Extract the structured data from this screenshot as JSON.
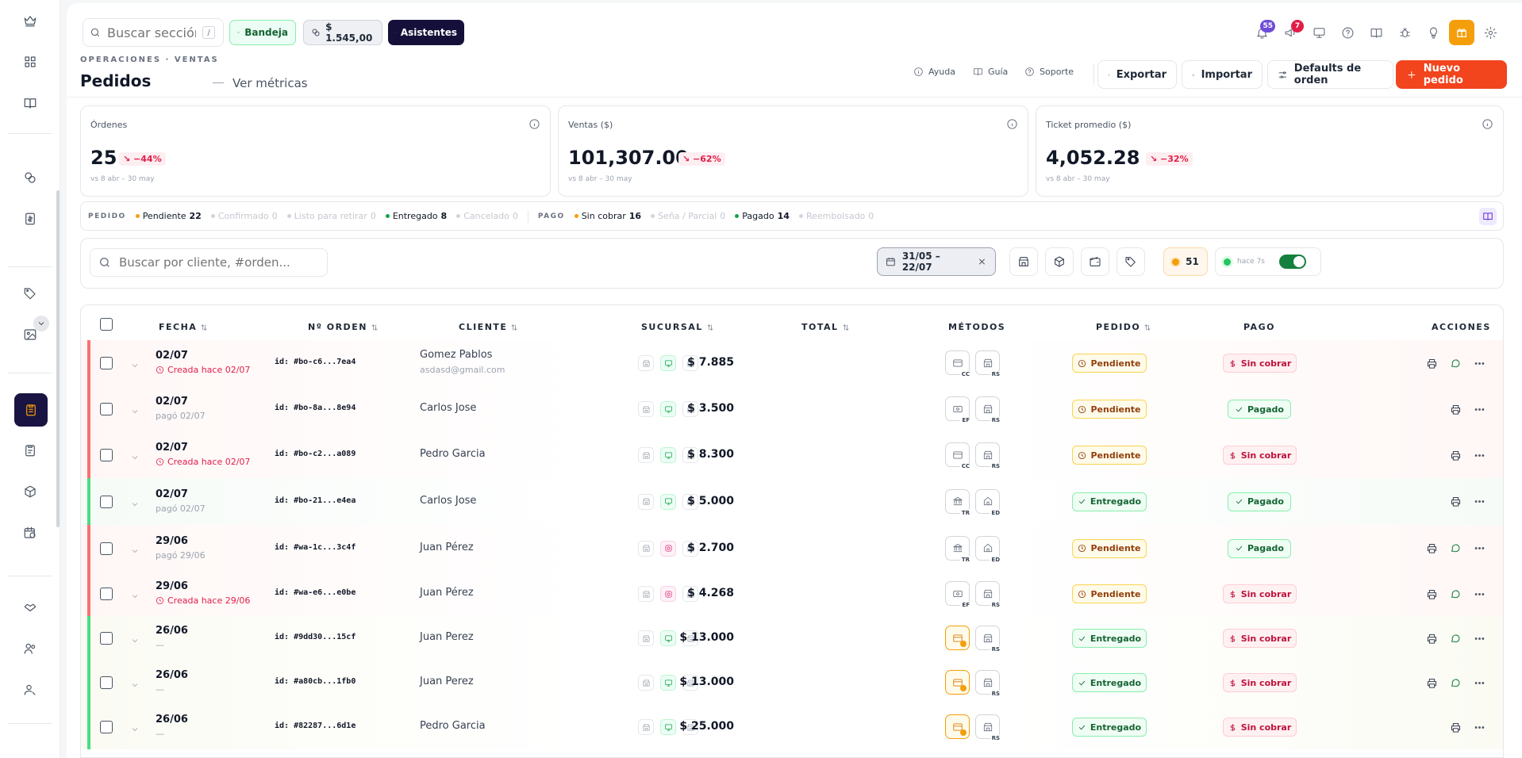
{
  "topbar": {
    "search_placeholder": "Buscar sección...",
    "search_shortcut": "/",
    "bandeja": "Bandeja",
    "balance": "$ 1.545,00",
    "asistentes": "Asistentes",
    "bell_count": "55",
    "megaphone_count": "7"
  },
  "header": {
    "breadcrumb": "OPERACIONES · VENTAS",
    "title": "Pedidos",
    "metrics_link": "Ver métricas",
    "ayuda": "Ayuda",
    "guia": "Guía",
    "soporte": "Soporte",
    "exportar": "Exportar",
    "importar": "Importar",
    "defaults": "Defaults de orden",
    "nuevo": "Nuevo pedido"
  },
  "kpis": [
    {
      "label": "Órdenes",
      "value": "25",
      "delta": "−44%",
      "sub": "vs 8 abr – 30 may"
    },
    {
      "label": "Ventas ($)",
      "value": "101,307.00",
      "delta": "−62%",
      "sub": "vs 8 abr – 30 may"
    },
    {
      "label": "Ticket promedio ($)",
      "value": "4,052.28",
      "delta": "−32%",
      "sub": "vs 8 abr – 30 may"
    }
  ],
  "status_summary": {
    "pedido_label": "PEDIDO",
    "pago_label": "PAGO",
    "pedido": [
      {
        "label": "Pendiente",
        "count": "22",
        "color": "#f59e0b"
      },
      {
        "label": "Confirmado",
        "count": "0",
        "color": "#d1d5db"
      },
      {
        "label": "Listo para retirar",
        "count": "0",
        "color": "#d1d5db"
      },
      {
        "label": "Entregado",
        "count": "8",
        "color": "#16a34a"
      },
      {
        "label": "Cancelado",
        "count": "0",
        "color": "#d1d5db"
      }
    ],
    "pago": [
      {
        "label": "Sin cobrar",
        "count": "16",
        "color": "#f59e0b"
      },
      {
        "label": "Seña / Parcial",
        "count": "0",
        "color": "#d1d5db"
      },
      {
        "label": "Pagado",
        "count": "14",
        "color": "#16a34a"
      },
      {
        "label": "Reembolsado",
        "count": "0",
        "color": "#d1d5db"
      }
    ]
  },
  "filters": {
    "search_placeholder": "Buscar por cliente, #orden...",
    "date_range": "31/05 – 22/07",
    "count": "51",
    "live_label": "hace 7s"
  },
  "table": {
    "headers": {
      "fecha": "FECHA",
      "orden": "Nº ORDEN",
      "cliente": "CLIENTE",
      "sucursal": "SUCURSAL",
      "total": "TOTAL",
      "metodos": "MÉTODOS",
      "pedido": "PEDIDO",
      "pago": "PAGO",
      "acciones": "ACCIONES"
    },
    "rows": [
      {
        "date": "02/07",
        "sub": "Creada hace 02/07",
        "id": "id: #bo-c6...7ea4",
        "client": "Gomez Pablos",
        "email": "asdasd@gmail.com",
        "total": "$ 7.885",
        "m1": "CC",
        "m2": "RS",
        "pedido": "Pendiente",
        "pago": "Sin cobrar"
      },
      {
        "date": "02/07",
        "sub": "pagó 02/07",
        "id": "id: #bo-8a...8e94",
        "client": "Carlos Jose",
        "email": "",
        "total": "$ 3.500",
        "m1": "EF",
        "m2": "RS",
        "pedido": "Pendiente",
        "pago": "Pagado"
      },
      {
        "date": "02/07",
        "sub": "Creada hace 02/07",
        "id": "id: #bo-c2...a089",
        "client": "Pedro Garcia",
        "email": "",
        "total": "$ 8.300",
        "m1": "CC",
        "m2": "RS",
        "pedido": "Pendiente",
        "pago": "Sin cobrar"
      },
      {
        "date": "02/07",
        "sub": "pagó 02/07",
        "id": "id: #bo-21...e4ea",
        "client": "Carlos Jose",
        "email": "",
        "total": "$ 5.000",
        "m1": "TR",
        "m2": "ED",
        "pedido": "Entregado",
        "pago": "Pagado"
      },
      {
        "date": "29/06",
        "sub": "pagó 29/06",
        "id": "id: #wa-1c...3c4f",
        "client": "Juan Pérez",
        "email": "",
        "total": "$ 2.700",
        "m1": "TR",
        "m2": "ED",
        "pedido": "Pendiente",
        "pago": "Pagado"
      },
      {
        "date": "29/06",
        "sub": "Creada hace 29/06",
        "id": "id: #wa-e6...e0be",
        "client": "Juan Pérez",
        "email": "",
        "total": "$ 4.268",
        "m1": "EF",
        "m2": "RS",
        "pedido": "Pendiente",
        "pago": "Sin cobrar"
      },
      {
        "date": "26/06",
        "sub": "—",
        "id": "id: #9dd30...15cf",
        "client": "Juan Perez",
        "email": "",
        "total": "$ 13.000",
        "m1": "",
        "m2": "RS",
        "pedido": "Entregado",
        "pago": "Sin cobrar"
      },
      {
        "date": "26/06",
        "sub": "—",
        "id": "id: #a80cb...1fb0",
        "client": "Juan Perez",
        "email": "",
        "total": "$ 13.000",
        "m1": "",
        "m2": "RS",
        "pedido": "Entregado",
        "pago": "Sin cobrar"
      },
      {
        "date": "26/06",
        "sub": "—",
        "id": "id: #82287...6d1e",
        "client": "Pedro Garcia",
        "email": "",
        "total": "$ 25.000",
        "m1": "",
        "m2": "RS",
        "pedido": "Entregado",
        "pago": "Sin cobrar"
      }
    ]
  }
}
